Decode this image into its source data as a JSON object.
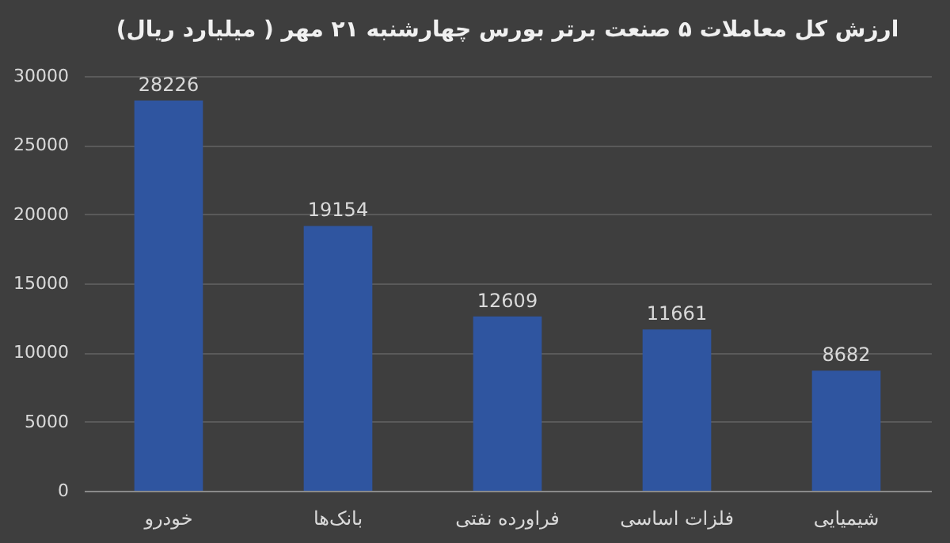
{
  "chart_data": {
    "type": "bar",
    "title": "ارزش کل معاملات ۵ صنعت برتر بورس چهارشنبه ۲۱ مهر ( میلیارد ریال)",
    "categories": [
      "خودرو",
      "بانک‌ها",
      "فراورده نفتی",
      "فلزات اساسی",
      "شیمیایی"
    ],
    "values": [
      28226,
      19154,
      12609,
      11661,
      8682
    ],
    "color": "#2f55a0",
    "ylim": [
      0,
      30000
    ],
    "yticks": [
      0,
      5000,
      10000,
      15000,
      20000,
      25000,
      30000
    ],
    "grid": "y",
    "data_labels": true
  }
}
